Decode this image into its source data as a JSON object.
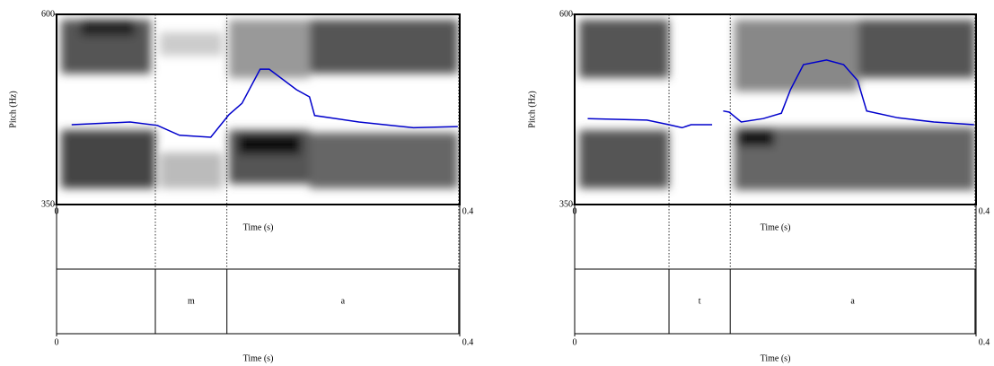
{
  "chart_data": [
    {
      "type": "line",
      "ylabel": "Pitch (Hz)",
      "xlabel": "Time (s)",
      "xlim": [
        0,
        0.4
      ],
      "xticks": [
        0,
        0.4
      ],
      "ylim": [
        350,
        600
      ],
      "yticks": [
        350,
        600
      ],
      "series": [
        {
          "color": "#0000cc",
          "x": [
            0.015,
            0.073,
            0.1,
            0.122,
            0.153,
            0.171,
            0.184,
            0.202,
            0.211,
            0.238,
            0.251,
            0.256,
            0.3,
            0.354,
            0.398
          ],
          "values": [
            455,
            458.5,
            454,
            441,
            438.5,
            468,
            483,
            528,
            528,
            501,
            491.5,
            467,
            458.5,
            451,
            452.5
          ]
        }
      ],
      "boundaries": [
        0.098,
        0.169,
        0.399
      ],
      "intervals": [
        {
          "start": 0.098,
          "end": 0.169,
          "text": "m"
        },
        {
          "start": 0.169,
          "end": 0.399,
          "text": "a"
        }
      ]
    },
    {
      "type": "line",
      "ylabel": "Pitch (Hz)",
      "xlabel": "Time (s)",
      "xlim": [
        0,
        0.4
      ],
      "xticks": [
        0,
        0.4
      ],
      "ylim": [
        350,
        600
      ],
      "yticks": [
        350,
        600
      ],
      "series": [
        {
          "color": "#0000cc",
          "x": [
            0.013,
            0.072,
            0.094,
            0.107,
            0.116,
            0.137,
            0.142,
            0.148,
            0.154,
            0.166,
            0.188,
            0.206,
            0.215,
            0.228,
            0.251,
            0.268,
            0.282,
            0.291,
            0.322,
            0.358,
            0.398
          ],
          "values": [
            463,
            461,
            455,
            451,
            455,
            455,
            null,
            473,
            471.5,
            458.5,
            463,
            470,
            501,
            534,
            540,
            534,
            513,
            473,
            464,
            458.5,
            455
          ]
        }
      ],
      "boundaries": [
        0.094,
        0.155,
        0.399
      ],
      "intervals": [
        {
          "start": 0.094,
          "end": 0.155,
          "text": "t"
        },
        {
          "start": 0.155,
          "end": 0.399,
          "text": "a"
        }
      ]
    }
  ]
}
